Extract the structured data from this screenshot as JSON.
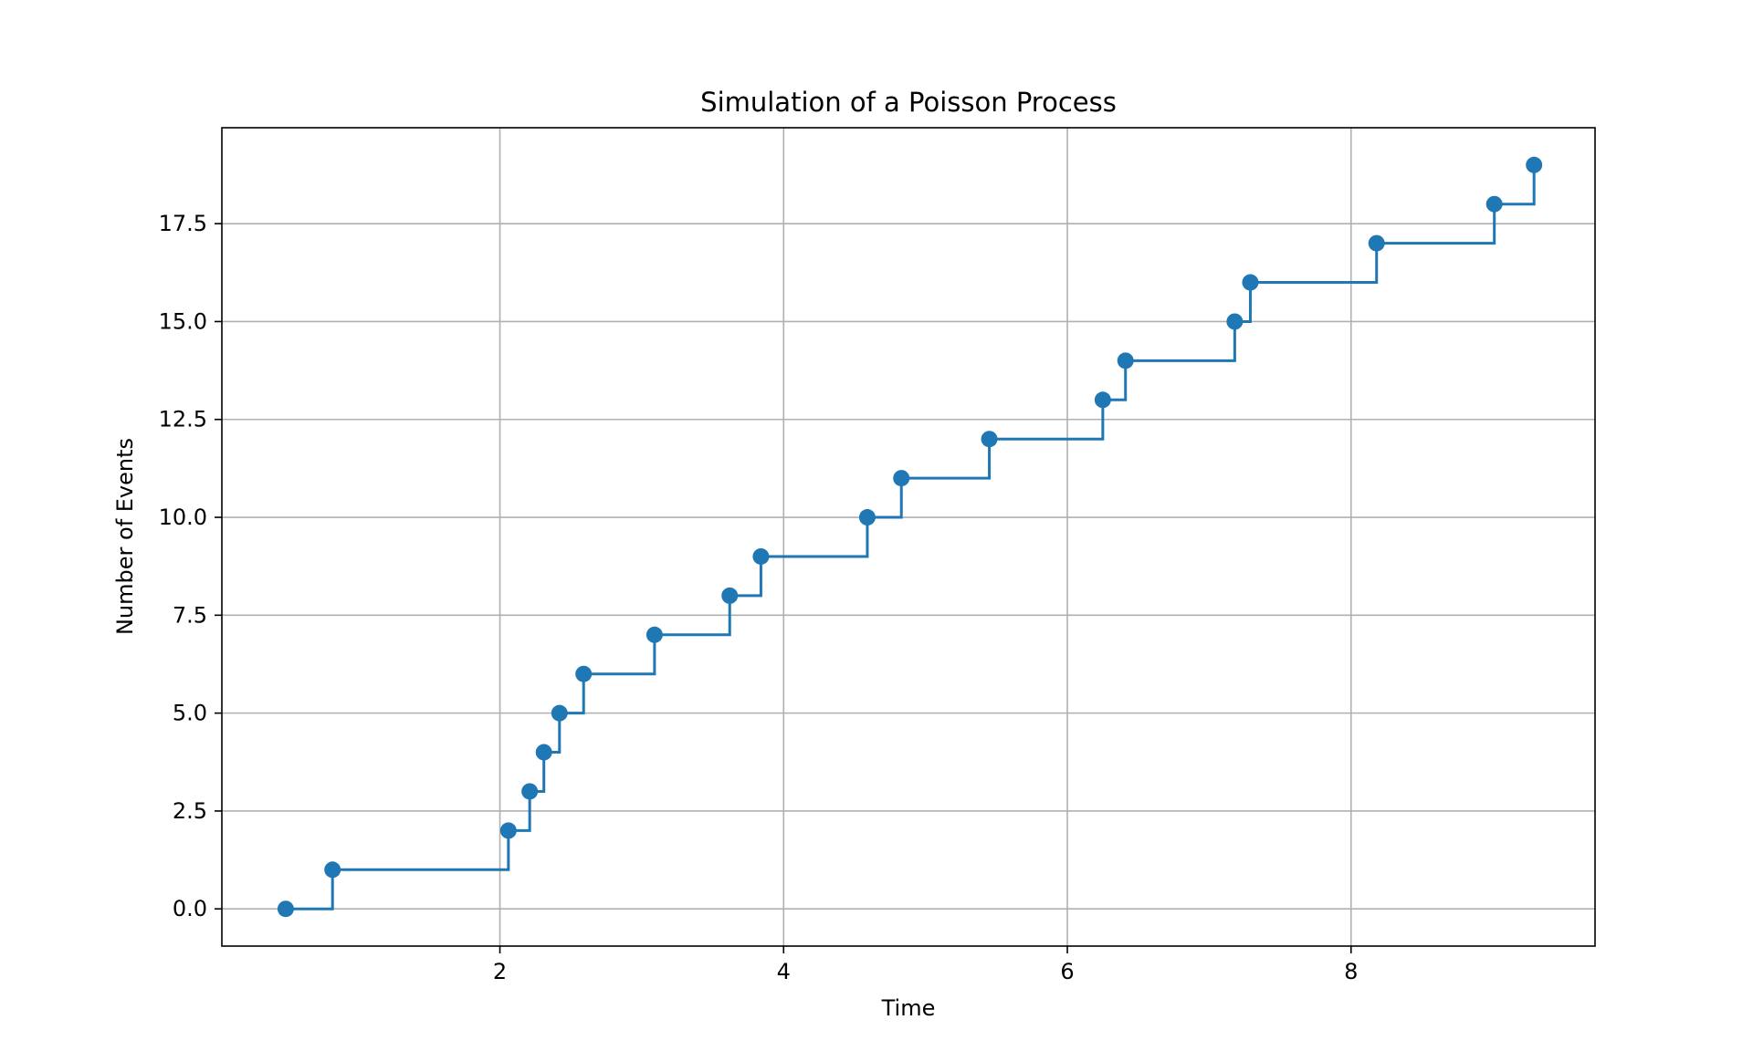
{
  "chart_data": {
    "type": "line",
    "drawstyle": "steps-post",
    "title": "Simulation of a Poisson Process",
    "xlabel": "Time",
    "ylabel": "Number of Events",
    "xlim": [
      0.04,
      9.72
    ],
    "ylim": [
      -0.95,
      19.95
    ],
    "xticks": [
      2,
      4,
      6,
      8
    ],
    "xtick_labels": [
      "2",
      "4",
      "6",
      "8"
    ],
    "yticks": [
      0,
      2.5,
      5,
      7.5,
      10,
      12.5,
      15,
      17.5
    ],
    "ytick_labels": [
      "0.0",
      "2.5",
      "5.0",
      "7.5",
      "10.0",
      "12.5",
      "15.0",
      "17.5"
    ],
    "grid": true,
    "legend": "none",
    "series": [
      {
        "color": "#1f77b4",
        "marker": "circle",
        "x": [
          0.49,
          0.82,
          2.06,
          2.21,
          2.31,
          2.42,
          2.59,
          3.09,
          3.62,
          3.84,
          4.59,
          4.83,
          5.45,
          6.25,
          6.41,
          7.18,
          7.29,
          8.18,
          9.01,
          9.29
        ],
        "y": [
          0,
          1,
          2,
          3,
          4,
          5,
          6,
          7,
          8,
          9,
          10,
          11,
          12,
          13,
          14,
          15,
          16,
          17,
          18,
          19
        ]
      }
    ]
  }
}
